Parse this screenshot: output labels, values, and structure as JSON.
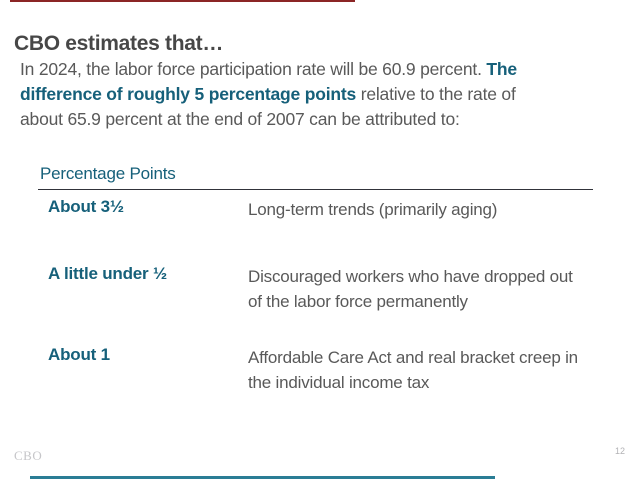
{
  "slide": {
    "title": "CBO estimates that…",
    "intro": {
      "lines": [
        {
          "normal": "In 2024, the labor force participation rate will be 60.9 percent. ",
          "em": "The"
        },
        {
          "em": "difference of roughly 5 percentage points",
          "normal": " relative to the rate of"
        },
        {
          "normal": "about 65.9 percent at the end of 2007 can be attributed to:"
        }
      ]
    },
    "table": {
      "header": "Percentage Points",
      "rows": [
        {
          "amount": "About 3½",
          "description": "Long-term trends (primarily aging)"
        },
        {
          "amount": "A little under ½",
          "description": "Discouraged workers who have dropped out of the labor force permanently"
        },
        {
          "amount": "About 1",
          "description": "Affordable Care Act and real bracket creep in the individual income tax"
        }
      ]
    },
    "footer": {
      "logo": "CBO",
      "page_number": "12"
    },
    "colors": {
      "accent_teal": "#16607a",
      "title_gray": "#474747",
      "body_gray": "#595959",
      "top_accent_line": "#8b2525",
      "bottom_accent_line": "#2a7d95",
      "rule_dark": "#31333a"
    }
  }
}
